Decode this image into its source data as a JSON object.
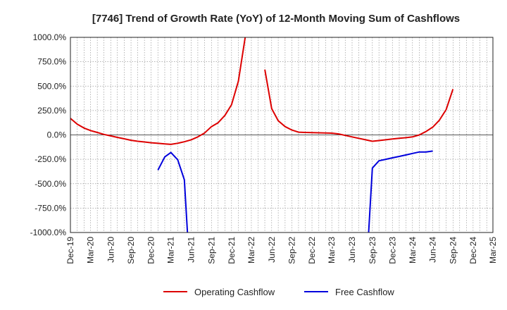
{
  "chart_data": {
    "type": "line",
    "title": "[7746]  Trend of Growth Rate (YoY) of 12-Month Moving Sum of Cashflows",
    "xlabel": "",
    "ylabel": "",
    "ylim": [
      -1000,
      1000
    ],
    "y_ticks": [
      1000,
      750,
      500,
      250,
      0,
      -250,
      -500,
      -750,
      -1000
    ],
    "y_tick_labels": [
      "1000.0%",
      "750.0%",
      "500.0%",
      "250.0%",
      "0.0%",
      "-250.0%",
      "-500.0%",
      "-750.0%",
      "-1000.0%"
    ],
    "x_ticks": [
      "2019-12",
      "2020-03",
      "2020-06",
      "2020-09",
      "2020-12",
      "2021-03",
      "2021-06",
      "2021-09",
      "2021-12",
      "2022-03",
      "2022-06",
      "2022-09",
      "2022-12",
      "2023-03",
      "2023-06",
      "2023-09",
      "2023-12",
      "2024-03",
      "2024-06",
      "2024-09",
      "2024-12",
      "2025-03"
    ],
    "x_tick_labels": [
      "Dec-19",
      "Mar-20",
      "Jun-20",
      "Sep-20",
      "Dec-20",
      "Mar-21",
      "Jun-21",
      "Sep-21",
      "Dec-21",
      "Mar-22",
      "Jun-22",
      "Sep-22",
      "Dec-22",
      "Mar-23",
      "Jun-23",
      "Sep-23",
      "Dec-23",
      "Mar-24",
      "Jun-24",
      "Sep-24",
      "Dec-24",
      "Mar-25"
    ],
    "grid": true,
    "legend_position": "bottom",
    "series": [
      {
        "name": "Operating Cashflow",
        "color": "#dd0000",
        "points": [
          {
            "x": "2019-12",
            "y": 170
          },
          {
            "x": "2020-01",
            "y": 110
          },
          {
            "x": "2020-02",
            "y": 70
          },
          {
            "x": "2020-03",
            "y": 45
          },
          {
            "x": "2020-04",
            "y": 25
          },
          {
            "x": "2020-05",
            "y": 5
          },
          {
            "x": "2020-06",
            "y": -10
          },
          {
            "x": "2020-07",
            "y": -25
          },
          {
            "x": "2020-08",
            "y": -40
          },
          {
            "x": "2020-09",
            "y": -55
          },
          {
            "x": "2020-10",
            "y": -65
          },
          {
            "x": "2020-11",
            "y": -72
          },
          {
            "x": "2020-12",
            "y": -80
          },
          {
            "x": "2021-01",
            "y": -86
          },
          {
            "x": "2021-02",
            "y": -92
          },
          {
            "x": "2021-03",
            "y": -97
          },
          {
            "x": "2021-04",
            "y": -85
          },
          {
            "x": "2021-05",
            "y": -70
          },
          {
            "x": "2021-06",
            "y": -50
          },
          {
            "x": "2021-07",
            "y": -20
          },
          {
            "x": "2021-08",
            "y": 20
          },
          {
            "x": "2021-09",
            "y": 85
          },
          {
            "x": "2021-10",
            "y": 125
          },
          {
            "x": "2021-11",
            "y": 200
          },
          {
            "x": "2021-12",
            "y": 310
          },
          {
            "x": "2022-01",
            "y": 550
          },
          {
            "x": "2022-02",
            "y": 1000
          },
          {
            "x": "2022-03",
            "y": null
          },
          {
            "x": "2022-04",
            "y": null
          },
          {
            "x": "2022-05",
            "y": 670
          },
          {
            "x": "2022-06",
            "y": 270
          },
          {
            "x": "2022-07",
            "y": 145
          },
          {
            "x": "2022-08",
            "y": 85
          },
          {
            "x": "2022-09",
            "y": 50
          },
          {
            "x": "2022-10",
            "y": 28
          },
          {
            "x": "2022-11",
            "y": 25
          },
          {
            "x": "2022-12",
            "y": 24
          },
          {
            "x": "2023-01",
            "y": 22
          },
          {
            "x": "2023-02",
            "y": 20
          },
          {
            "x": "2023-03",
            "y": 18
          },
          {
            "x": "2023-04",
            "y": 10
          },
          {
            "x": "2023-05",
            "y": -5
          },
          {
            "x": "2023-06",
            "y": -20
          },
          {
            "x": "2023-07",
            "y": -35
          },
          {
            "x": "2023-08",
            "y": -50
          },
          {
            "x": "2023-09",
            "y": -65
          },
          {
            "x": "2023-10",
            "y": -58
          },
          {
            "x": "2023-11",
            "y": -50
          },
          {
            "x": "2023-12",
            "y": -42
          },
          {
            "x": "2024-01",
            "y": -35
          },
          {
            "x": "2024-02",
            "y": -28
          },
          {
            "x": "2024-03",
            "y": -20
          },
          {
            "x": "2024-04",
            "y": 0
          },
          {
            "x": "2024-05",
            "y": 35
          },
          {
            "x": "2024-06",
            "y": 80
          },
          {
            "x": "2024-07",
            "y": 150
          },
          {
            "x": "2024-08",
            "y": 260
          },
          {
            "x": "2024-09",
            "y": 470
          }
        ]
      },
      {
        "name": "Free Cashflow",
        "color": "#0000dd",
        "points": [
          {
            "x": "2021-01",
            "y": -360
          },
          {
            "x": "2021-02",
            "y": -225
          },
          {
            "x": "2021-03",
            "y": -180
          },
          {
            "x": "2021-04",
            "y": -255
          },
          {
            "x": "2021-05",
            "y": -460
          },
          {
            "x": "2021-05-15",
            "y": -1000
          },
          {
            "x": "2023-08-15",
            "y": null
          },
          {
            "x": "2023-08-15",
            "y": -1000
          },
          {
            "x": "2023-09",
            "y": -340
          },
          {
            "x": "2023-10",
            "y": -265
          },
          {
            "x": "2023-11",
            "y": -250
          },
          {
            "x": "2023-12",
            "y": -235
          },
          {
            "x": "2024-01",
            "y": -220
          },
          {
            "x": "2024-02",
            "y": -205
          },
          {
            "x": "2024-03",
            "y": -190
          },
          {
            "x": "2024-04",
            "y": -175
          },
          {
            "x": "2024-05",
            "y": -175
          },
          {
            "x": "2024-06",
            "y": -165
          }
        ]
      }
    ]
  }
}
